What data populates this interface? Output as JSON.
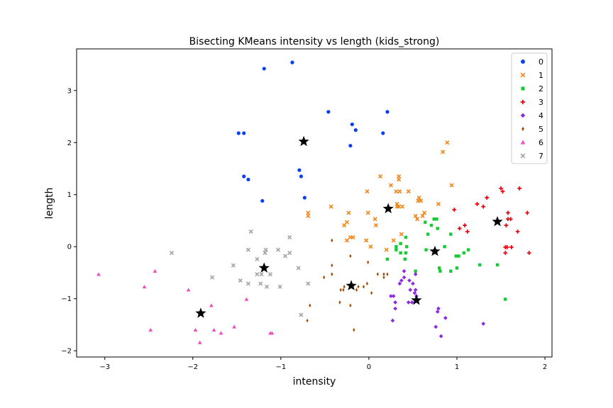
{
  "chart_data": {
    "type": "scatter",
    "title": "Bisecting KMeans intensity vs length (kids_strong)",
    "xlabel": "intensity",
    "ylabel": "length",
    "xlim": [
      -3.32,
      2.08
    ],
    "ylim": [
      -2.12,
      3.8
    ],
    "xticks": [
      -3,
      -2,
      -1,
      0,
      1,
      2
    ],
    "yticks": [
      -2,
      -1,
      0,
      1,
      2,
      3
    ],
    "grid": false,
    "legend_position": "top-right",
    "series": [
      {
        "name": "0",
        "color": "#0b3ff2",
        "marker": "circle",
        "points": [
          [
            -1.19,
            3.42
          ],
          [
            -0.87,
            3.54
          ],
          [
            -0.46,
            2.59
          ],
          [
            0.21,
            2.59
          ],
          [
            -0.19,
            2.35
          ],
          [
            -0.15,
            2.24
          ],
          [
            -1.48,
            2.18
          ],
          [
            -1.42,
            2.18
          ],
          [
            0.16,
            2.18
          ],
          [
            -0.21,
            1.94
          ],
          [
            -0.79,
            1.47
          ],
          [
            -1.42,
            1.35
          ],
          [
            -0.77,
            1.35
          ],
          [
            -1.37,
            1.29
          ],
          [
            -0.73,
            0.94
          ],
          [
            -1.21,
            0.88
          ]
        ]
      },
      {
        "name": "1",
        "color": "#f28518",
        "marker": "x",
        "points": [
          [
            0.89,
            2.0
          ],
          [
            0.84,
            1.82
          ],
          [
            0.13,
            1.35
          ],
          [
            0.34,
            1.35
          ],
          [
            0.34,
            1.29
          ],
          [
            0.25,
            1.18
          ],
          [
            0.94,
            1.18
          ],
          [
            -0.02,
            1.06
          ],
          [
            0.31,
            1.06
          ],
          [
            0.35,
            1.06
          ],
          [
            0.45,
            1.06
          ],
          [
            0.57,
            0.94
          ],
          [
            0.56,
            0.88
          ],
          [
            0.59,
            0.88
          ],
          [
            0.32,
            0.82
          ],
          [
            0.34,
            0.77
          ],
          [
            0.38,
            0.77
          ],
          [
            0.32,
            0.77
          ],
          [
            0.79,
            0.82
          ],
          [
            -0.69,
            0.65
          ],
          [
            -0.69,
            0.59
          ],
          [
            -0.43,
            0.77
          ],
          [
            0.63,
            0.65
          ],
          [
            -0.23,
            0.65
          ],
          [
            -0.01,
            0.65
          ],
          [
            0.53,
            0.59
          ],
          [
            0.61,
            0.59
          ],
          [
            0.55,
            0.53
          ],
          [
            0.07,
            0.53
          ],
          [
            -0.25,
            0.47
          ],
          [
            -0.28,
            0.41
          ],
          [
            0.08,
            0.41
          ],
          [
            0.37,
            0.24
          ],
          [
            -0.21,
            0.18
          ],
          [
            -0.18,
            0.18
          ],
          [
            -0.25,
            0.12
          ],
          [
            -0.03,
            0.12
          ],
          [
            0.28,
            0.12
          ],
          [
            0.02,
            0.0
          ],
          [
            0.2,
            -0.06
          ]
        ]
      },
      {
        "name": "2",
        "color": "#1ac938",
        "marker": "square",
        "points": [
          [
            0.74,
            0.53
          ],
          [
            0.77,
            0.53
          ],
          [
            0.64,
            0.47
          ],
          [
            0.71,
            0.41
          ],
          [
            0.78,
            0.35
          ],
          [
            0.67,
            0.24
          ],
          [
            0.93,
            0.24
          ],
          [
            0.42,
            0.18
          ],
          [
            0.36,
            0.06
          ],
          [
            0.43,
            0.0
          ],
          [
            0.31,
            0.0
          ],
          [
            0.86,
            0.0
          ],
          [
            0.31,
            -0.06
          ],
          [
            0.36,
            -0.12
          ],
          [
            0.42,
            -0.12
          ],
          [
            0.65,
            -0.06
          ],
          [
            1.13,
            -0.06
          ],
          [
            1.08,
            -0.12
          ],
          [
            1.02,
            -0.18
          ],
          [
            0.99,
            -0.18
          ],
          [
            0.21,
            -0.24
          ],
          [
            0.41,
            -0.24
          ],
          [
            1.26,
            -0.35
          ],
          [
            1.46,
            -0.35
          ],
          [
            0.8,
            -0.41
          ],
          [
            1.0,
            -0.41
          ],
          [
            0.53,
            -0.47
          ],
          [
            0.81,
            -0.47
          ],
          [
            0.93,
            -0.47
          ],
          [
            1.55,
            -1.01
          ]
        ]
      },
      {
        "name": "3",
        "color": "#e8000b",
        "marker": "plus",
        "points": [
          [
            1.71,
            1.12
          ],
          [
            1.5,
            1.12
          ],
          [
            1.52,
            1.06
          ],
          [
            1.34,
            0.94
          ],
          [
            1.23,
            0.82
          ],
          [
            1.3,
            0.77
          ],
          [
            0.97,
            0.71
          ],
          [
            1.58,
            0.65
          ],
          [
            1.8,
            0.65
          ],
          [
            1.58,
            0.53
          ],
          [
            1.61,
            0.53
          ],
          [
            1.56,
            0.41
          ],
          [
            1.09,
            0.41
          ],
          [
            1.03,
            0.35
          ],
          [
            1.12,
            0.29
          ],
          [
            1.69,
            0.29
          ],
          [
            1.55,
            -0.01
          ],
          [
            1.57,
            -0.01
          ],
          [
            1.62,
            -0.01
          ],
          [
            1.55,
            -0.12
          ],
          [
            1.82,
            -0.12
          ]
        ]
      },
      {
        "name": "4",
        "color": "#8b2be2",
        "marker": "diamond",
        "points": [
          [
            0.4,
            -0.47
          ],
          [
            0.53,
            -0.53
          ],
          [
            0.4,
            -0.59
          ],
          [
            0.37,
            -0.65
          ],
          [
            0.46,
            -0.65
          ],
          [
            0.35,
            -0.71
          ],
          [
            0.5,
            -0.71
          ],
          [
            0.53,
            -0.83
          ],
          [
            0.47,
            -0.83
          ],
          [
            0.52,
            -0.89
          ],
          [
            0.25,
            -0.95
          ],
          [
            0.28,
            -0.95
          ],
          [
            0.54,
            -0.95
          ],
          [
            0.3,
            -1.07
          ],
          [
            0.45,
            -1.07
          ],
          [
            0.49,
            -1.07
          ],
          [
            0.3,
            -1.19
          ],
          [
            0.79,
            -1.19
          ],
          [
            0.78,
            -1.25
          ],
          [
            0.87,
            -1.37
          ],
          [
            0.27,
            -1.42
          ],
          [
            1.3,
            -1.48
          ],
          [
            0.76,
            -1.54
          ],
          [
            0.82,
            -1.72
          ]
        ]
      },
      {
        "name": "5",
        "color": "#9f4800",
        "marker": "thin_diamond",
        "points": [
          [
            -0.42,
            0.12
          ],
          [
            -0.42,
            -0.36
          ],
          [
            -0.01,
            -0.3
          ],
          [
            -0.21,
            -0.18
          ],
          [
            -0.42,
            -0.53
          ],
          [
            -0.51,
            -0.59
          ],
          [
            0.17,
            -0.53
          ],
          [
            0.21,
            -0.53
          ],
          [
            0.1,
            -0.53
          ],
          [
            0.17,
            -0.59
          ],
          [
            -0.02,
            -0.71
          ],
          [
            -0.28,
            -0.77
          ],
          [
            -0.21,
            -0.77
          ],
          [
            -0.12,
            -0.77
          ],
          [
            -0.06,
            -0.77
          ],
          [
            -0.29,
            -0.83
          ],
          [
            -0.32,
            -0.83
          ],
          [
            -0.14,
            -0.83
          ],
          [
            0.03,
            -0.89
          ],
          [
            -0.67,
            -1.13
          ],
          [
            -0.33,
            -1.07
          ],
          [
            -0.21,
            -1.13
          ],
          [
            -0.7,
            -1.42
          ],
          [
            -0.17,
            -1.6
          ]
        ]
      },
      {
        "name": "6",
        "color": "#f14cc1",
        "marker": "triangle",
        "points": [
          [
            -3.07,
            -0.53
          ],
          [
            -2.43,
            -0.47
          ],
          [
            -2.55,
            -0.77
          ],
          [
            -2.05,
            -0.83
          ],
          [
            -1.39,
            -1.01
          ],
          [
            -1.79,
            -1.13
          ],
          [
            -2.48,
            -1.6
          ],
          [
            -1.97,
            -1.6
          ],
          [
            -1.76,
            -1.6
          ],
          [
            -1.68,
            -1.66
          ],
          [
            -1.53,
            -1.54
          ],
          [
            -1.12,
            -1.66
          ],
          [
            -1.1,
            -1.66
          ],
          [
            -1.92,
            -1.84
          ]
        ]
      },
      {
        "name": "7",
        "color": "#a3a3a3",
        "marker": "x",
        "points": [
          [
            -1.34,
            0.29
          ],
          [
            -0.9,
            0.18
          ],
          [
            -2.24,
            -0.12
          ],
          [
            -1.37,
            -0.06
          ],
          [
            -1.03,
            -0.06
          ],
          [
            -1.17,
            -0.06
          ],
          [
            -1.18,
            -0.12
          ],
          [
            -0.9,
            -0.12
          ],
          [
            -0.95,
            -0.18
          ],
          [
            -1.27,
            -0.24
          ],
          [
            -1.54,
            -0.36
          ],
          [
            -0.8,
            -0.41
          ],
          [
            -1.27,
            -0.53
          ],
          [
            -1.22,
            -0.53
          ],
          [
            -1.12,
            -0.53
          ],
          [
            -1.78,
            -0.59
          ],
          [
            -1.46,
            -0.65
          ],
          [
            -1.37,
            -0.71
          ],
          [
            -1.23,
            -0.71
          ],
          [
            -1.16,
            -0.77
          ],
          [
            -1.01,
            -0.77
          ],
          [
            -0.69,
            -0.71
          ],
          [
            -0.77,
            -1.31
          ]
        ]
      }
    ],
    "centroids": {
      "color": "#000000",
      "marker": "star",
      "points": [
        [
          -0.74,
          2.02
        ],
        [
          0.22,
          0.73
        ],
        [
          0.75,
          -0.09
        ],
        [
          1.46,
          0.48
        ],
        [
          0.54,
          -1.03
        ],
        [
          -0.2,
          -0.75
        ],
        [
          -1.91,
          -1.28
        ],
        [
          -1.19,
          -0.41
        ]
      ]
    }
  }
}
